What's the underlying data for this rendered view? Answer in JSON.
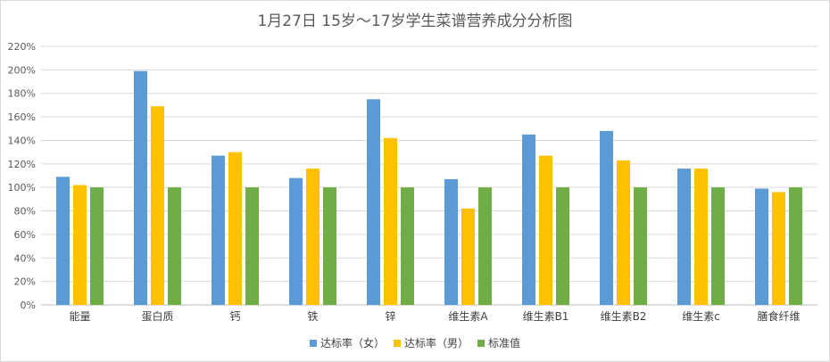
{
  "chart_data": {
    "type": "bar",
    "title": "1月27日 15岁～17岁学生菜谱营养成分分析图",
    "categories": [
      "能量",
      "蛋白质",
      "钙",
      "铁",
      "锌",
      "维生素A",
      "维生素B1",
      "维生素B2",
      "维生素c",
      "膳食纤维"
    ],
    "series": [
      {
        "name": "达标率（女）",
        "color": "#5b9bd5",
        "values": [
          109,
          199,
          127,
          108,
          175,
          107,
          145,
          148,
          116,
          99
        ]
      },
      {
        "name": "达标率（男）",
        "color": "#ffc000",
        "values": [
          102,
          169,
          130,
          116,
          142,
          82,
          127,
          123,
          116,
          96
        ]
      },
      {
        "name": "标准值",
        "color": "#70ad47",
        "values": [
          100,
          100,
          100,
          100,
          100,
          100,
          100,
          100,
          100,
          100
        ]
      }
    ],
    "ylim": [
      0,
      220
    ],
    "ytick_step": 20,
    "ytick_format": "percent",
    "grid": true,
    "legend_position": "bottom"
  }
}
